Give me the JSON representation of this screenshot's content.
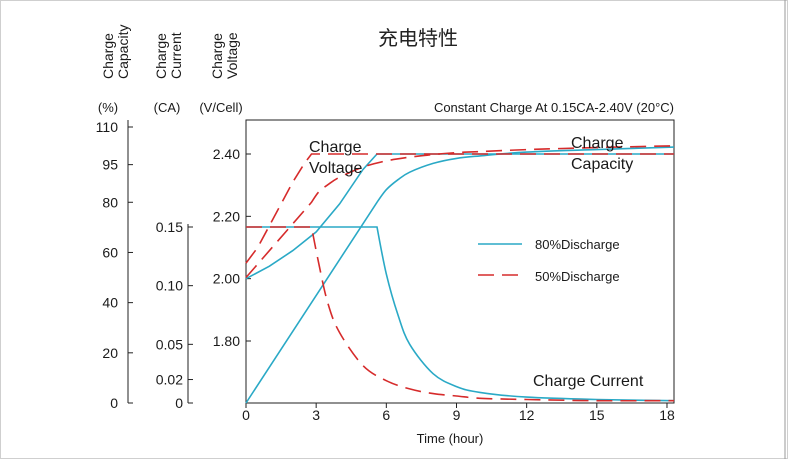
{
  "chart_data": {
    "type": "line",
    "title": "充电特性",
    "subtitle": "Constant Charge At 0.15CA-2.40V (20°C)",
    "xlabel": "Time (hour)",
    "x_ticks": [
      "0",
      "3",
      "6",
      "9",
      "12",
      "15",
      "18"
    ],
    "xlim": [
      0,
      18.3
    ],
    "axes": {
      "capacity": {
        "header": [
          "Charge",
          "Capacity"
        ],
        "unit": "(%)",
        "ticks": [
          "110",
          "95",
          "80",
          "60",
          "40",
          "20",
          "0"
        ],
        "tick_values": [
          110,
          95,
          80,
          60,
          40,
          20,
          0
        ]
      },
      "current": {
        "header": [
          "Charge",
          "Current"
        ],
        "unit": "(CA)",
        "ticks": [
          "0.15",
          "0.10",
          "0.05",
          "0.02",
          "0"
        ],
        "tick_values": [
          0.15,
          0.1,
          0.05,
          0.02,
          0
        ]
      },
      "voltage": {
        "header": [
          "Charge",
          "Voltage"
        ],
        "unit": "(V/Cell)",
        "ticks": [
          "2.40",
          "2.20",
          "2.00",
          "1.80"
        ],
        "tick_values": [
          2.4,
          2.2,
          2.0,
          1.8
        ]
      }
    },
    "curve_labels": {
      "voltage": [
        "Charge",
        "Voltage"
      ],
      "capacity": [
        "Charge",
        "Capacity"
      ],
      "current": "Charge Current"
    },
    "series": [
      {
        "name": "80%Discharge",
        "color": "#2aa9c6",
        "dash": "solid",
        "voltage": {
          "x": [
            0,
            1,
            2,
            3,
            4,
            5,
            5.6,
            18.3
          ],
          "y": [
            2.0,
            2.04,
            2.09,
            2.15,
            2.24,
            2.35,
            2.4,
            2.4
          ]
        },
        "current": {
          "x": [
            0,
            5.6,
            6,
            6.5,
            7,
            8,
            9,
            10,
            12,
            15,
            18.3
          ],
          "y": [
            0.15,
            0.15,
            0.11,
            0.075,
            0.05,
            0.025,
            0.014,
            0.009,
            0.005,
            0.003,
            0.002
          ]
        },
        "capacity": {
          "x": [
            0,
            5.6,
            6,
            6.5,
            7,
            8,
            9,
            10,
            12,
            15,
            18.3
          ],
          "y": [
            0,
            80,
            85,
            89,
            92,
            95.5,
            97.5,
            98.5,
            100,
            101,
            102
          ]
        }
      },
      {
        "name": "50%Discharge",
        "color": "#d62b2b",
        "dash": "dashed",
        "voltage": {
          "x": [
            0,
            0.5,
            1,
            1.5,
            2,
            2.5,
            2.8,
            18.3
          ],
          "y": [
            2.05,
            2.1,
            2.17,
            2.24,
            2.31,
            2.37,
            2.4,
            2.4
          ]
        },
        "current": {
          "x": [
            0,
            2.8,
            3.1,
            3.5,
            4,
            5,
            6,
            7,
            8,
            9,
            10,
            12,
            15,
            18.3
          ],
          "y": [
            0.15,
            0.15,
            0.12,
            0.085,
            0.06,
            0.032,
            0.019,
            0.012,
            0.008,
            0.006,
            0.004,
            0.003,
            0.002,
            0.002
          ]
        },
        "capacity": {
          "x": [
            0,
            2.8,
            3.1,
            3.5,
            4,
            5,
            6,
            7,
            8,
            9,
            10,
            12,
            15,
            18.3
          ],
          "y": [
            50,
            80,
            84,
            87,
            90,
            94,
            96.5,
            98,
            99,
            99.8,
            100.2,
            101,
            101.8,
            102.5
          ]
        }
      }
    ],
    "legend_position": "right-center",
    "grid": false
  }
}
